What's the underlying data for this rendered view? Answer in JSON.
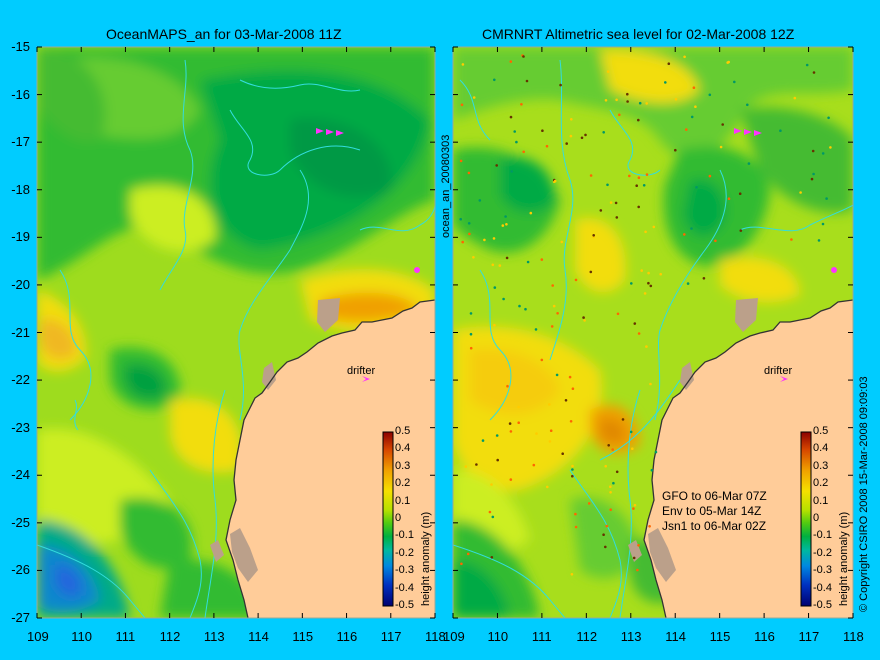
{
  "left_panel": {
    "title": "OceanMAPS_an for 03-Mar-2008 11Z",
    "colorbar_label": "height anomaly (m)",
    "drifter_label": "drifter"
  },
  "right_panel": {
    "title": "CMRNRT Altimetric sea level  for 02-Mar-2008 12Z",
    "colorbar_label": "height anomaly (m)",
    "drifter_label": "drifter",
    "satellite_info": [
      "GFO to 06-Mar 07Z",
      "Env to 05-Mar 14Z",
      "Jsn1 to 06-Mar 02Z"
    ]
  },
  "middle_label": "ocean_an_20080303",
  "copyright": "© Copyright CSIRO 2008   15-Mar-2008 09:09:03",
  "y_ticks": [
    "-15",
    "-16",
    "-17",
    "-18",
    "-19",
    "-20",
    "-21",
    "-22",
    "-23",
    "-24",
    "-25",
    "-26",
    "-27"
  ],
  "x_ticks": [
    "109",
    "110",
    "111",
    "112",
    "113",
    "114",
    "115",
    "116",
    "117",
    "118"
  ],
  "colorbar_ticks": [
    "0.5",
    "0.4",
    "0.3",
    "0.2",
    "0.1",
    "0",
    "-0.1",
    "-0.2",
    "-0.3",
    "-0.4",
    "-0.5"
  ],
  "colors": {
    "background": "#00ccff",
    "land": "#ffcc99",
    "coast_dark": "#bba08a",
    "contour": "#33dddd",
    "drifter": "#ff33ff"
  }
}
